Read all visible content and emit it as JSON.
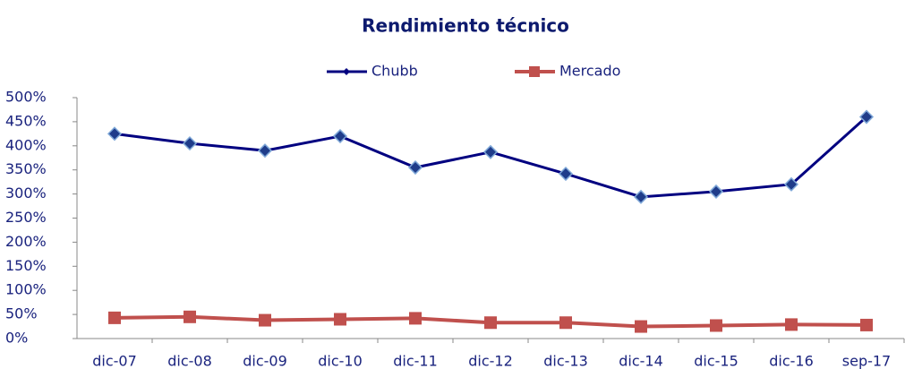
{
  "chart_data": {
    "type": "line",
    "title": "Rendimiento técnico",
    "categories": [
      "dic-07",
      "dic-08",
      "dic-09",
      "dic-10",
      "dic-11",
      "dic-12",
      "dic-13",
      "dic-14",
      "dic-15",
      "dic-16",
      "sep-17"
    ],
    "series": [
      {
        "name": "Chubb",
        "color": "#000080",
        "marker": "diamond",
        "values": [
          425,
          405,
          390,
          420,
          355,
          387,
          342,
          294,
          305,
          320,
          460
        ]
      },
      {
        "name": "Mercado",
        "color": "#c0504d",
        "marker": "square",
        "values": [
          43,
          45,
          38,
          40,
          42,
          33,
          33,
          25,
          27,
          29,
          28
        ]
      }
    ],
    "ylim": [
      0,
      500
    ],
    "yticks": [
      {
        "value": 0,
        "label": "0%"
      },
      {
        "value": 50,
        "label": "50%"
      },
      {
        "value": 100,
        "label": "100%"
      },
      {
        "value": 150,
        "label": "150%"
      },
      {
        "value": 200,
        "label": "200%"
      },
      {
        "value": 250,
        "label": "250%"
      },
      {
        "value": 300,
        "label": "300%"
      },
      {
        "value": 350,
        "label": "350%"
      },
      {
        "value": 400,
        "label": "400%"
      },
      {
        "value": 450,
        "label": "450%"
      },
      {
        "value": 500,
        "label": "500%"
      }
    ],
    "grid": false,
    "legend": "top"
  }
}
